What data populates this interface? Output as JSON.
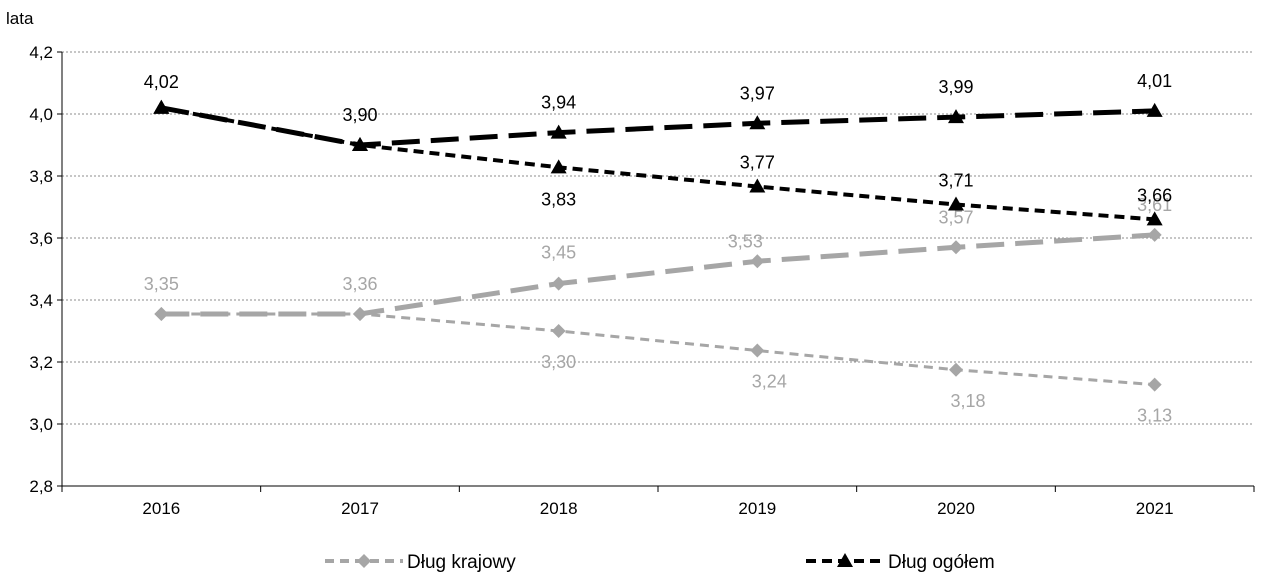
{
  "chart_data": {
    "type": "line",
    "ylabel": "lata",
    "ylim": [
      2.8,
      4.2
    ],
    "yticks": [
      "2,8",
      "3,0",
      "3,2",
      "3,4",
      "3,6",
      "3,8",
      "4,0",
      "4,2"
    ],
    "categories": [
      "2016",
      "2017",
      "2018",
      "2019",
      "2020",
      "2021"
    ],
    "grid": "horizontal dotted",
    "legend": "bottom",
    "series": [
      {
        "name": "Dług krajowy",
        "style": "gray-short-dash-diamond",
        "color": "#a6a6a6",
        "values": [
          3.355,
          3.355,
          3.3,
          3.237,
          3.175,
          3.127
        ],
        "labels": [
          "3,35",
          "3,36",
          "3,30",
          "3,24",
          "3,18",
          "3,13"
        ]
      },
      {
        "name": "",
        "style": "gray-long-dash-diamond",
        "color": "#a6a6a6",
        "values": [
          3.355,
          3.355,
          3.453,
          3.525,
          3.57,
          3.61
        ],
        "labels": [
          "",
          "",
          "3,45",
          "3,53",
          "3,57",
          "3,61"
        ]
      },
      {
        "name": "Dług ogółem",
        "style": "black-short-dash-triangle",
        "color": "#000000",
        "values": [
          4.02,
          3.9,
          3.828,
          3.766,
          3.708,
          3.66
        ],
        "labels": [
          "",
          "",
          "3,83",
          "3,77",
          "3,71",
          "3,66"
        ]
      },
      {
        "name": "",
        "style": "black-long-dash-triangle",
        "color": "#000000",
        "values": [
          4.02,
          3.9,
          3.94,
          3.97,
          3.99,
          4.01
        ],
        "labels": [
          "4,02",
          "3,90",
          "3,94",
          "3,97",
          "3,99",
          "4,01"
        ]
      }
    ]
  }
}
